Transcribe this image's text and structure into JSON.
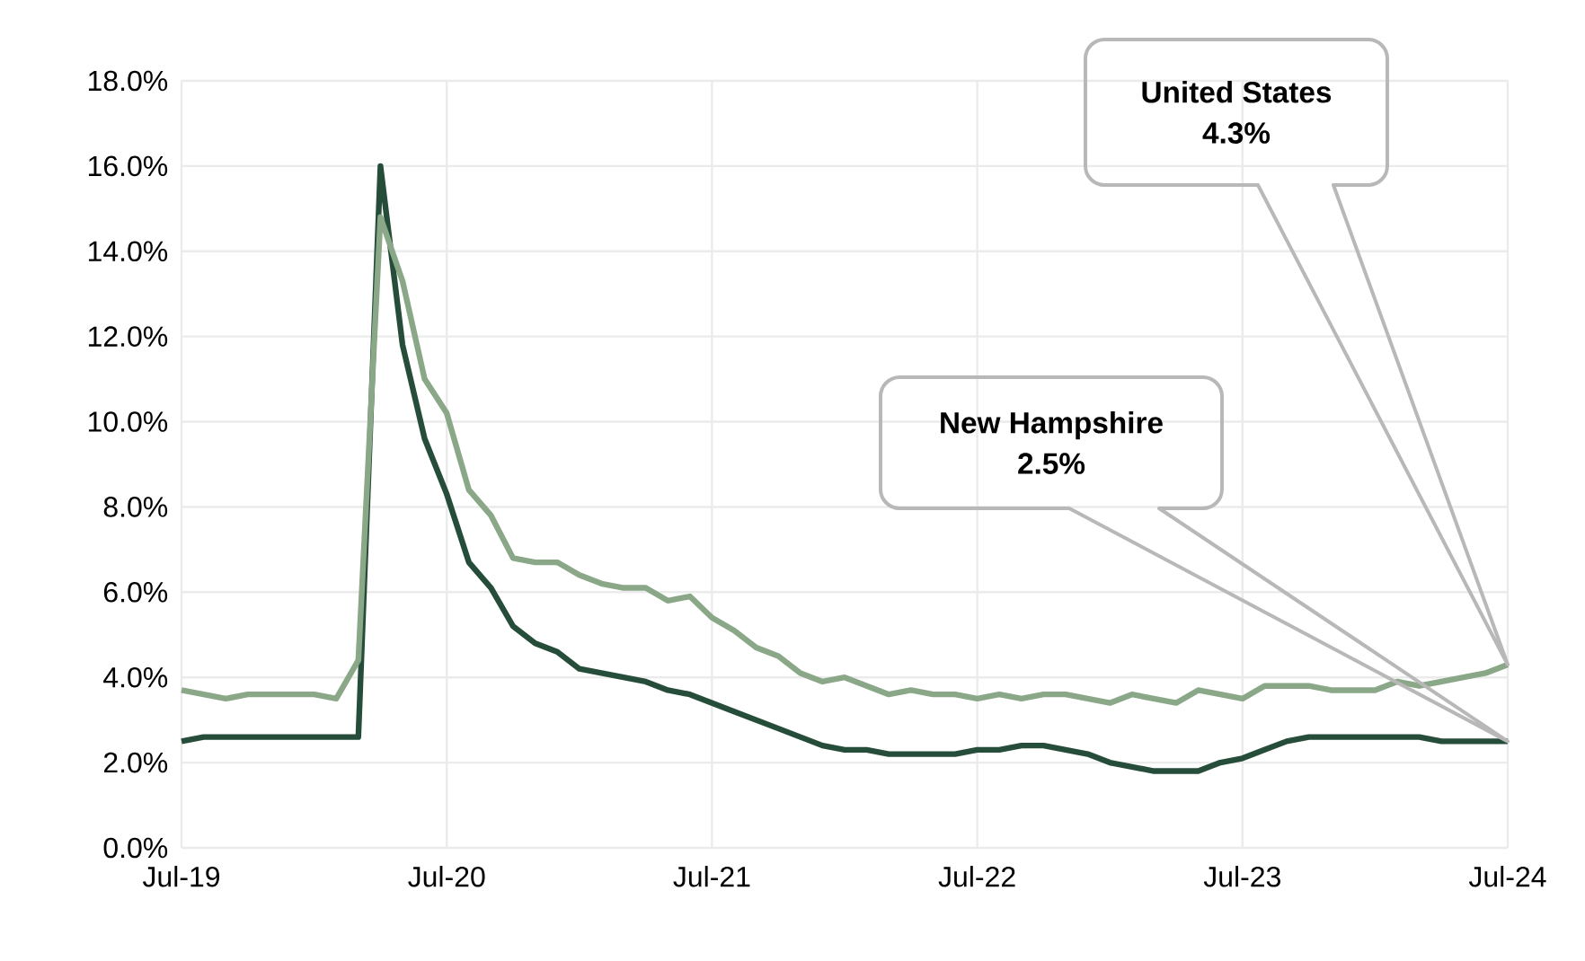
{
  "chart_data": {
    "type": "line",
    "x": [
      "2019-07",
      "2019-08",
      "2019-09",
      "2019-10",
      "2019-11",
      "2019-12",
      "2020-01",
      "2020-02",
      "2020-03",
      "2020-04",
      "2020-05",
      "2020-06",
      "2020-07",
      "2020-08",
      "2020-09",
      "2020-10",
      "2020-11",
      "2020-12",
      "2021-01",
      "2021-02",
      "2021-03",
      "2021-04",
      "2021-05",
      "2021-06",
      "2021-07",
      "2021-08",
      "2021-09",
      "2021-10",
      "2021-11",
      "2021-12",
      "2022-01",
      "2022-02",
      "2022-03",
      "2022-04",
      "2022-05",
      "2022-06",
      "2022-07",
      "2022-08",
      "2022-09",
      "2022-10",
      "2022-11",
      "2022-12",
      "2023-01",
      "2023-02",
      "2023-03",
      "2023-04",
      "2023-05",
      "2023-06",
      "2023-07",
      "2023-08",
      "2023-09",
      "2023-10",
      "2023-11",
      "2023-12",
      "2024-01",
      "2024-02",
      "2024-03",
      "2024-04",
      "2024-05",
      "2024-06",
      "2024-07"
    ],
    "series": [
      {
        "color": "#264d3a",
        "values": [
          2.5,
          2.6,
          2.6,
          2.6,
          2.6,
          2.6,
          2.6,
          2.6,
          2.6,
          16.0,
          11.8,
          9.6,
          8.3,
          6.7,
          6.1,
          5.2,
          4.8,
          4.6,
          4.2,
          4.1,
          4.0,
          3.9,
          3.7,
          3.6,
          3.4,
          3.2,
          3.0,
          2.8,
          2.6,
          2.4,
          2.3,
          2.3,
          2.2,
          2.2,
          2.2,
          2.2,
          2.3,
          2.3,
          2.4,
          2.4,
          2.3,
          2.2,
          2.0,
          1.9,
          1.8,
          1.8,
          1.8,
          2.0,
          2.1,
          2.3,
          2.5,
          2.6,
          2.6,
          2.6,
          2.6,
          2.6,
          2.6,
          2.5,
          2.5,
          2.5,
          2.5
        ]
      },
      {
        "color": "#8aa888",
        "values": [
          3.7,
          3.6,
          3.5,
          3.6,
          3.6,
          3.6,
          3.6,
          3.5,
          4.4,
          14.8,
          13.3,
          11.0,
          10.2,
          8.4,
          7.8,
          6.8,
          6.7,
          6.7,
          6.4,
          6.2,
          6.1,
          6.1,
          5.8,
          5.9,
          5.4,
          5.1,
          4.7,
          4.5,
          4.1,
          3.9,
          4.0,
          3.8,
          3.6,
          3.7,
          3.6,
          3.6,
          3.5,
          3.6,
          3.5,
          3.6,
          3.6,
          3.5,
          3.4,
          3.6,
          3.5,
          3.4,
          3.7,
          3.6,
          3.5,
          3.8,
          3.8,
          3.8,
          3.7,
          3.7,
          3.7,
          3.9,
          3.8,
          3.9,
          4.0,
          4.1,
          4.3
        ]
      }
    ],
    "xlim": [
      "2019-07",
      "2024-07"
    ],
    "xticks": [
      {
        "value": "2019-07",
        "label": "Jul-19"
      },
      {
        "value": "2020-07",
        "label": "Jul-20"
      },
      {
        "value": "2021-07",
        "label": "Jul-21"
      },
      {
        "value": "2022-07",
        "label": "Jul-22"
      },
      {
        "value": "2023-07",
        "label": "Jul-23"
      },
      {
        "value": "2024-07",
        "label": "Jul-24"
      }
    ],
    "ylim": [
      0,
      18
    ],
    "yticks": [
      {
        "value": 0,
        "label": "0.0%"
      },
      {
        "value": 2,
        "label": "2.0%"
      },
      {
        "value": 4,
        "label": "4.0%"
      },
      {
        "value": 6,
        "label": "6.0%"
      },
      {
        "value": 8,
        "label": "8.0%"
      },
      {
        "value": 10,
        "label": "10.0%"
      },
      {
        "value": 12,
        "label": "12.0%"
      },
      {
        "value": 14,
        "label": "14.0%"
      },
      {
        "value": 16,
        "label": "16.0%"
      },
      {
        "value": 18,
        "label": "18.0%"
      }
    ],
    "grid": true,
    "annotations": [
      "New Hampshire",
      "2.5%",
      "United States",
      "4.3%"
    ]
  }
}
